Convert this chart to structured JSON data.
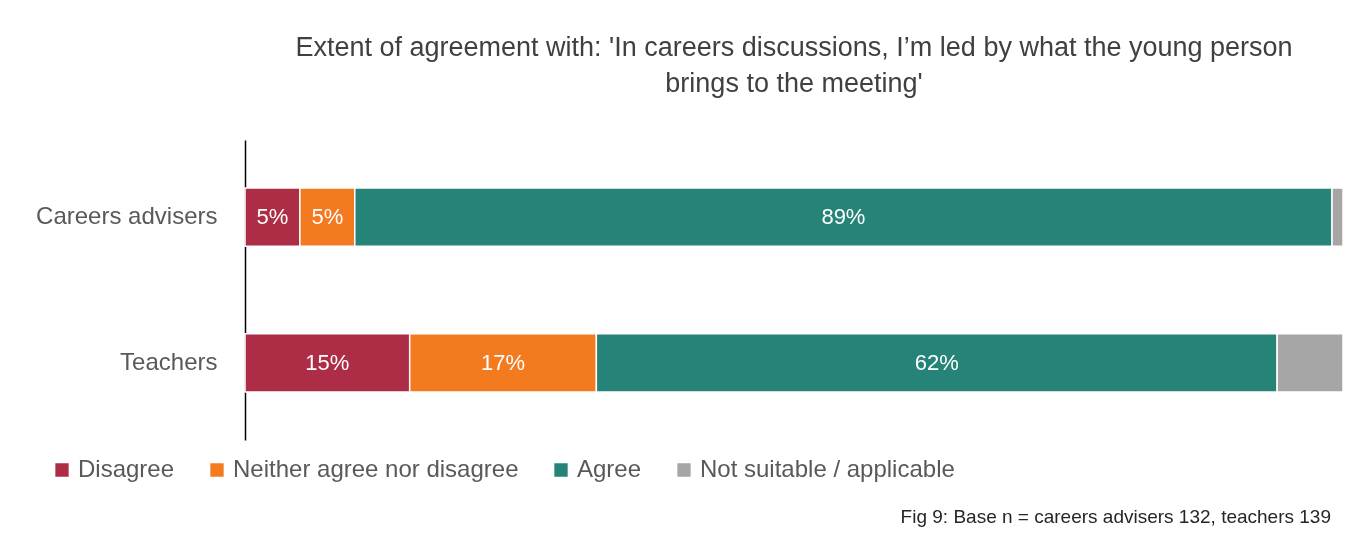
{
  "chart_data": {
    "type": "bar",
    "orientation": "horizontal",
    "stacked": true,
    "title": "Extent of agreement with: 'In careers discussions, I’m led by what the young person brings to the meeting'",
    "categories": [
      "Careers advisers",
      "Teachers"
    ],
    "xlim": [
      0,
      100
    ],
    "tick_labels": "y",
    "legend": "bottom",
    "series": [
      {
        "name": "Disagree",
        "color": "#ae2d46",
        "values": [
          5,
          15
        ],
        "value_labels": [
          "5%",
          "15%"
        ]
      },
      {
        "name": "Neither agree nor disagree",
        "color": "#f47a1f",
        "values": [
          5,
          17
        ],
        "value_labels": [
          "5%",
          "17%"
        ]
      },
      {
        "name": "Agree",
        "color": "#268378",
        "values": [
          89,
          62
        ],
        "value_labels": [
          "89%",
          "62%"
        ]
      },
      {
        "name": "Not suitable / applicable",
        "color": "#a6a6a6",
        "values": [
          1,
          6
        ],
        "value_labels": [
          null,
          null
        ]
      }
    ],
    "annotations": [
      "Fig 9: Base n = careers advisers 132, teachers 139"
    ]
  }
}
